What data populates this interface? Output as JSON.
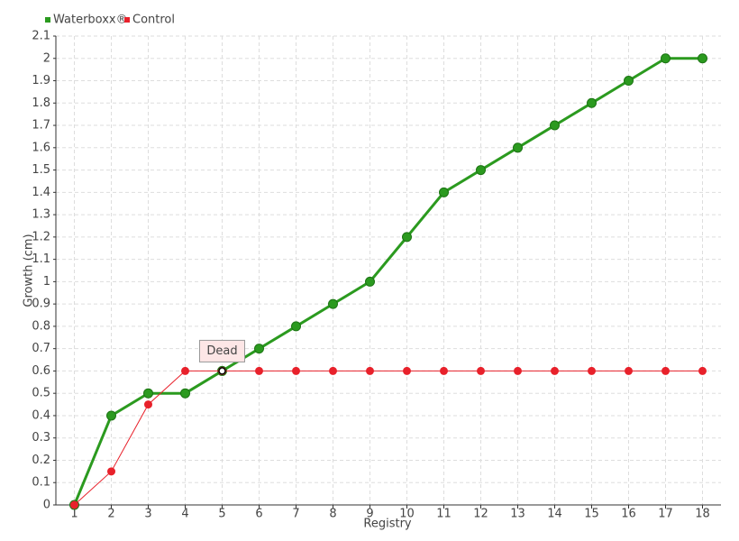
{
  "chart_data": {
    "type": "line",
    "x_label": "Registry",
    "y_label": "Growth (cm)",
    "categories": [
      "1",
      "2",
      "3",
      "4",
      "5",
      "6",
      "7",
      "8",
      "9",
      "10",
      "11",
      "12",
      "13",
      "14",
      "15",
      "16",
      "17",
      "18"
    ],
    "series": [
      {
        "name": "Waterboxx®",
        "color": "#2b9a1f",
        "values": [
          0,
          0.4,
          0.5,
          0.5,
          0.6,
          0.7,
          0.8,
          0.9,
          1,
          1.2,
          1.4,
          1.5,
          1.6,
          1.7,
          1.8,
          1.9,
          2,
          2
        ]
      },
      {
        "name": "Control",
        "color": "#e8212b",
        "values": [
          0,
          0.15,
          0.45,
          0.6,
          0.6,
          0.6,
          0.6,
          0.6,
          0.6,
          0.6,
          0.6,
          0.6,
          0.6,
          0.6,
          0.6,
          0.6,
          0.6,
          0.6
        ]
      }
    ],
    "annotations": [
      {
        "text": "Dead",
        "x": "5",
        "y": 0.6
      }
    ],
    "ylim": [
      0,
      2.1
    ],
    "yticks": [
      0,
      0.1,
      0.2,
      0.3,
      0.4,
      0.5,
      0.6,
      0.7,
      0.8,
      0.9,
      1,
      1.1,
      1.2,
      1.3,
      1.4,
      1.5,
      1.6,
      1.7,
      1.8,
      1.9,
      2,
      2.1
    ],
    "grid": true,
    "legend": "top-left"
  }
}
